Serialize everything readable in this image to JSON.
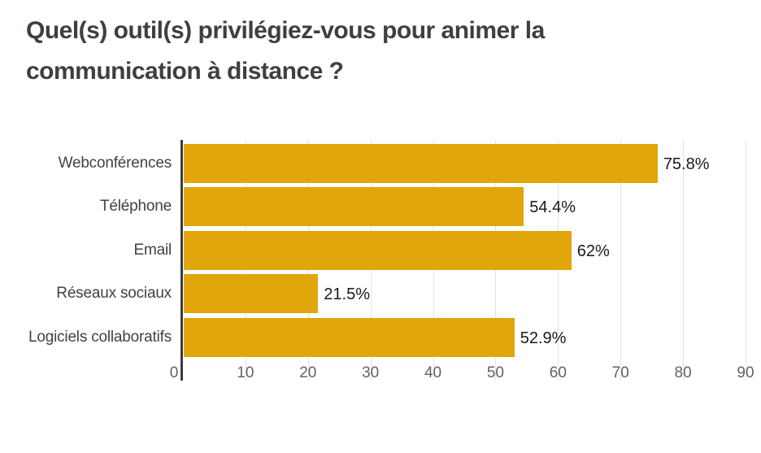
{
  "title": {
    "text": "Quel(s) outil(s) privilégiez-vous pour animer la communication à distance ?",
    "lines": [
      "Quel(s) outil(s) privilégiez-vous pour animer la",
      "communication à distance ?"
    ]
  },
  "chart_data": {
    "type": "bar",
    "orientation": "horizontal",
    "title": "Quel(s) outil(s) privilégiez-vous pour animer la communication à distance ?",
    "categories": [
      "Webconférences",
      "Téléphone",
      "Email",
      "Réseaux sociaux",
      "Logiciels collaboratifs"
    ],
    "values": [
      75.8,
      54.4,
      62,
      21.5,
      52.9
    ],
    "value_labels": [
      "75.8%",
      "54.4%",
      "62%",
      "21.5%",
      "52.9%"
    ],
    "x_ticks": [
      0,
      10,
      20,
      30,
      40,
      50,
      60,
      70,
      80,
      90
    ],
    "xlim": [
      0,
      90
    ],
    "xlabel": "",
    "ylabel": "",
    "grid": true,
    "legend": "none",
    "colors": {
      "bar": "#E0A60B",
      "axis_line": "#3b3b3b",
      "gridline": "#e3e3e3",
      "category_label": "#424242",
      "tick_label": "#5f6368",
      "value_label": "#1a1a1a",
      "title": "#3c4043",
      "background": "#ffffff"
    }
  }
}
